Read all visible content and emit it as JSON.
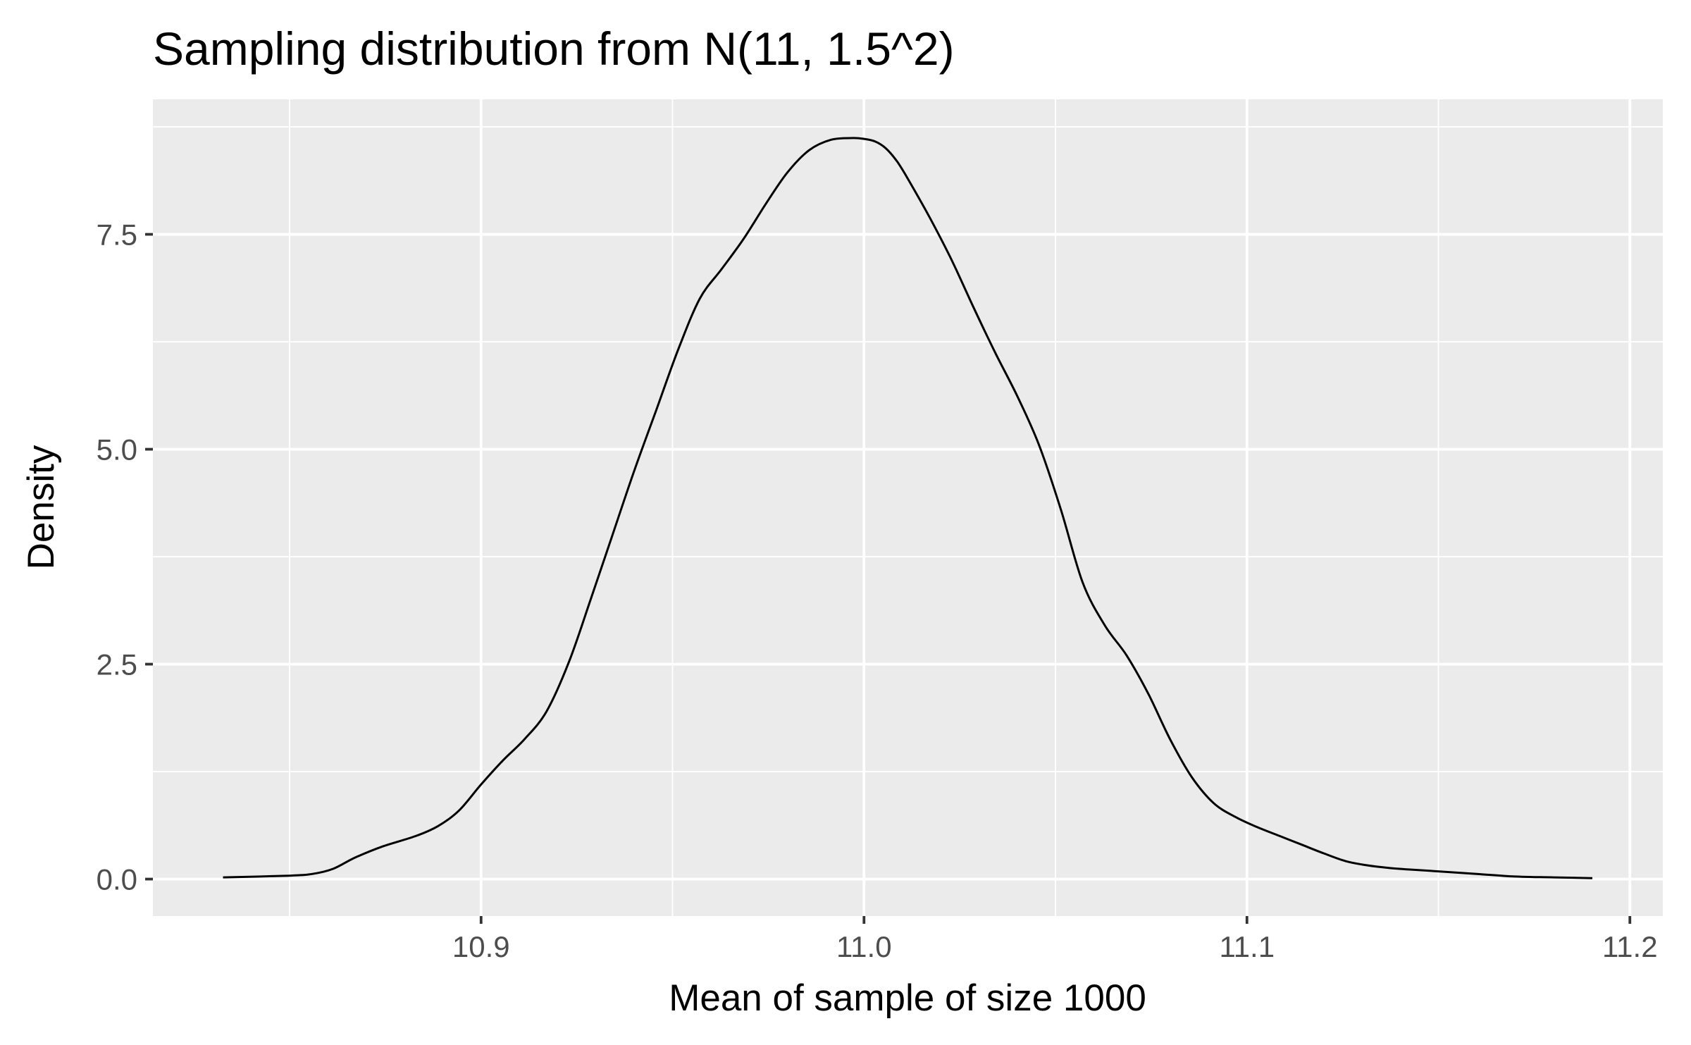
{
  "chart_data": {
    "type": "line",
    "title": "Sampling distribution from N(11, 1.5^2)",
    "xlabel": "Mean of sample of size 1000",
    "ylabel": "Density",
    "xlim": [
      10.8143,
      11.2086
    ],
    "ylim": [
      -0.43,
      9.07
    ],
    "x_ticks": [
      10.9,
      11.0,
      11.1,
      11.2
    ],
    "x_tick_labels": [
      "10.9",
      "11.0",
      "11.1",
      "11.2"
    ],
    "x_minor_ticks": [
      10.85,
      10.95,
      11.05,
      11.15
    ],
    "y_ticks": [
      0.0,
      2.5,
      5.0,
      7.5
    ],
    "y_tick_labels": [
      "0.0",
      "2.5",
      "5.0",
      "7.5"
    ],
    "y_minor_ticks": [
      1.25,
      3.75,
      6.25,
      8.75
    ],
    "grid": true,
    "legend": "none",
    "colors": {
      "panel": "#ebebeb",
      "grid": "#ffffff",
      "line": "#000000",
      "tick_text": "#4d4d4d"
    },
    "series": [
      {
        "x": [
          10.8326,
          10.85,
          10.856,
          10.8614,
          10.8671,
          10.8743,
          10.8829,
          10.8889,
          10.8943,
          10.9,
          10.9057,
          10.9114,
          10.9171,
          10.9229,
          10.9286,
          10.9343,
          10.94,
          10.9457,
          10.9514,
          10.9571,
          10.9629,
          10.9686,
          10.9743,
          10.98,
          10.9857,
          10.9914,
          10.9971,
          11.0,
          11.0029,
          11.0057,
          11.0086,
          11.0114,
          11.0171,
          11.0229,
          11.0286,
          11.0343,
          11.04,
          11.0457,
          11.0514,
          11.0571,
          11.0629,
          11.0686,
          11.0743,
          11.08,
          11.0857,
          11.0914,
          11.0971,
          11.1029,
          11.1086,
          11.1143,
          11.12,
          11.1257,
          11.1314,
          11.1371,
          11.1429,
          11.15,
          11.16,
          11.17,
          11.18,
          11.1902
        ],
        "y": [
          0.02,
          0.04,
          0.06,
          0.12,
          0.25,
          0.38,
          0.5,
          0.62,
          0.8,
          1.1,
          1.38,
          1.63,
          1.95,
          2.52,
          3.25,
          4.0,
          4.75,
          5.45,
          6.15,
          6.75,
          7.1,
          7.45,
          7.85,
          8.22,
          8.48,
          8.6,
          8.62,
          8.61,
          8.58,
          8.5,
          8.35,
          8.15,
          7.7,
          7.2,
          6.65,
          6.12,
          5.62,
          5.05,
          4.3,
          3.45,
          2.95,
          2.6,
          2.15,
          1.62,
          1.18,
          0.88,
          0.72,
          0.6,
          0.5,
          0.4,
          0.3,
          0.21,
          0.16,
          0.13,
          0.11,
          0.09,
          0.06,
          0.03,
          0.02,
          0.01
        ]
      }
    ]
  }
}
